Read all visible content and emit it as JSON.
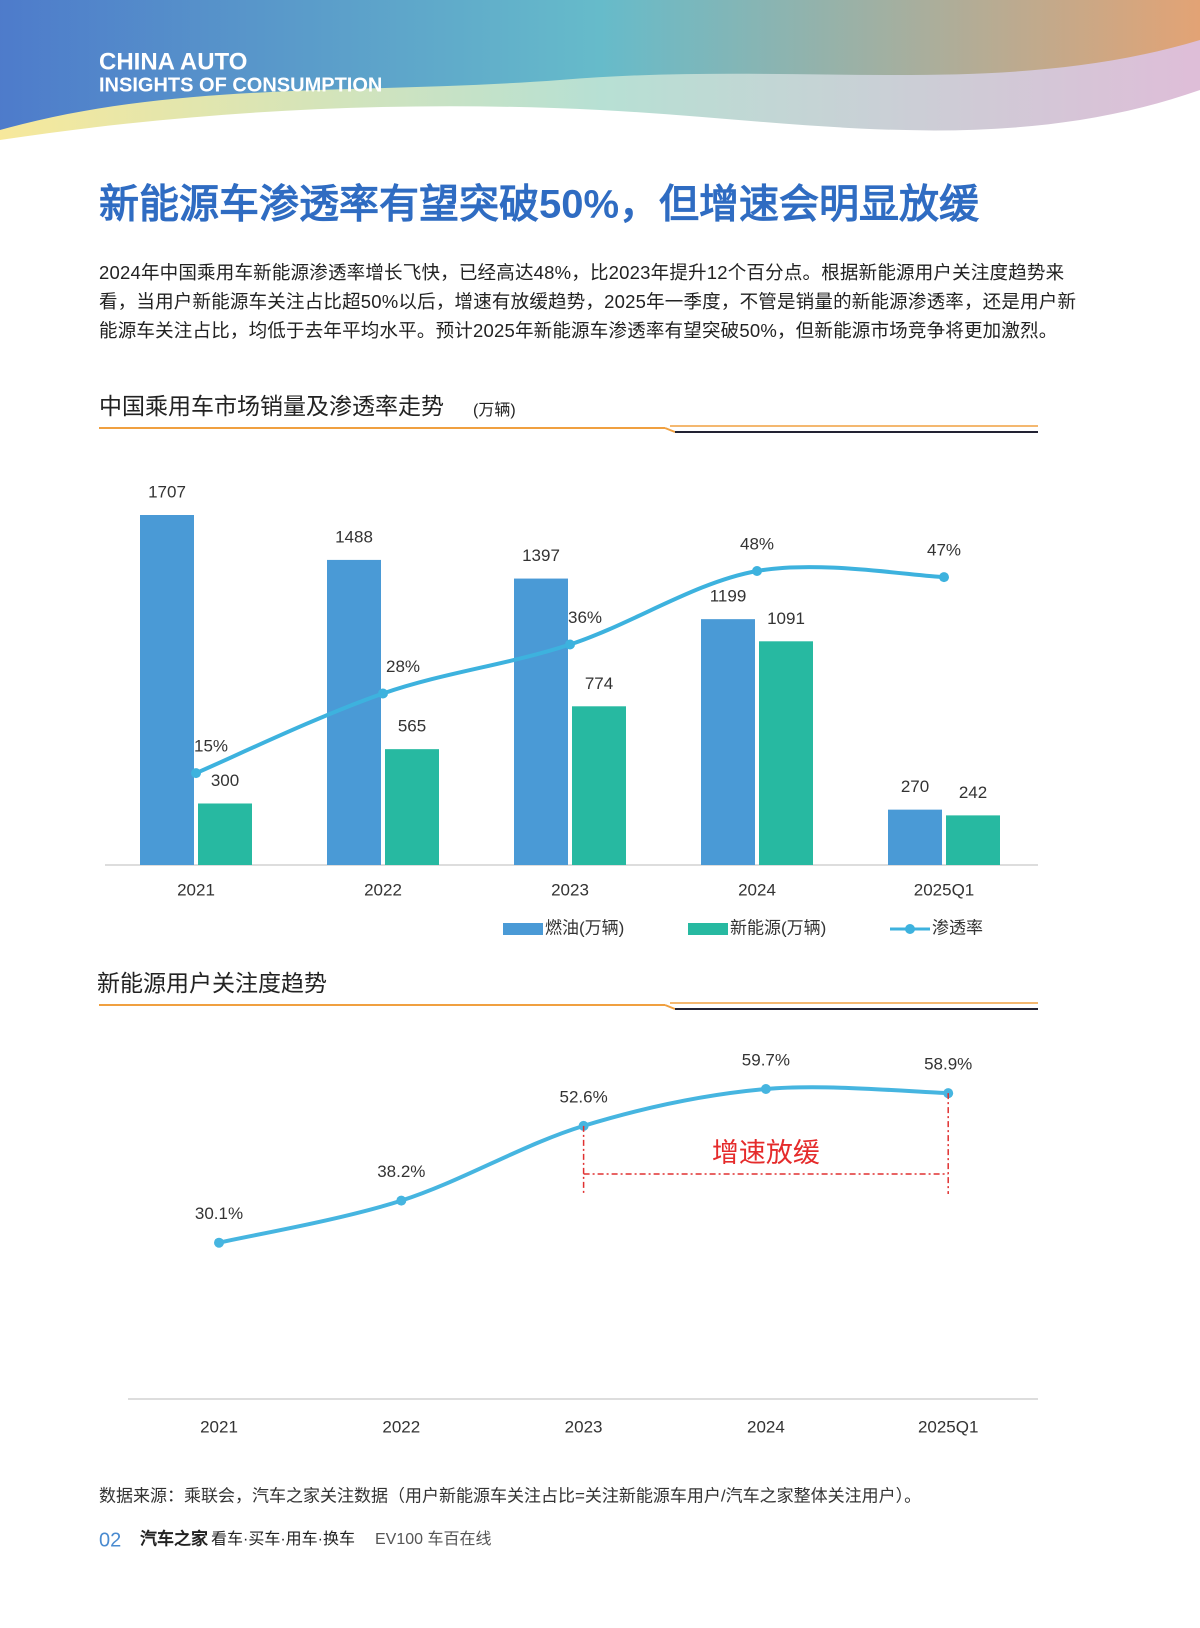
{
  "header": {
    "line1": "CHINA AUTO",
    "line2": "INSIGHTS OF CONSUMPTION"
  },
  "title": "新能源车渗透率有望突破50%，但增速会明显放缓",
  "paragraph": "2024年中国乘用车新能源渗透率增长飞快，已经高达48%，比2023年提升12个百分点。根据新能源用户关注度趋势来看，当用户新能源车关注占比超50%以后，增速有放缓趋势，2025年一季度，不管是销量的新能源渗透率，还是用户新能源车关注占比，均低于去年平均水平。预计2025年新能源车渗透率有望突破50%，但新能源市场竞争将更加激烈。",
  "chart_data": [
    {
      "type": "bar",
      "title": "中国乘用车市场销量及渗透率走势",
      "subtitle": "(万辆)",
      "categories": [
        "2021",
        "2022",
        "2023",
        "2024",
        "2025Q1"
      ],
      "series": [
        {
          "name": "燃油(万辆)",
          "color": "#4a9ad6",
          "values": [
            1707,
            1488,
            1397,
            1199,
            270
          ]
        },
        {
          "name": "新能源(万辆)",
          "color": "#27b9a1",
          "values": [
            300,
            565,
            774,
            1091,
            242
          ]
        },
        {
          "name": "渗透率",
          "color": "#3db2de",
          "type": "line",
          "axis": "y2",
          "values": [
            15,
            28,
            36,
            48,
            47
          ],
          "value_labels": [
            "15%",
            "28%",
            "36%",
            "48%",
            "47%"
          ]
        }
      ]
    },
    {
      "type": "line",
      "title": "新能源用户关注度趋势",
      "categories": [
        "2021",
        "2022",
        "2023",
        "2024",
        "2025Q1"
      ],
      "series": [
        {
          "color": "#46b5e0",
          "values": [
            30.1,
            38.2,
            52.6,
            59.7,
            58.9
          ],
          "value_labels": [
            "30.1%",
            "38.2%",
            "52.6%",
            "59.7%",
            "58.9%"
          ]
        }
      ],
      "annotation": "增速放缓"
    }
  ],
  "source": "数据来源：乘联会，汽车之家关注数据（用户新能源车关注占比=关注新能源车用户/汽车之家整体关注用户）。",
  "footer": {
    "page": "02",
    "brand": "汽车之家",
    "slogan": "看车·买车·用车·换车",
    "partner": "EV100 车百在线"
  }
}
